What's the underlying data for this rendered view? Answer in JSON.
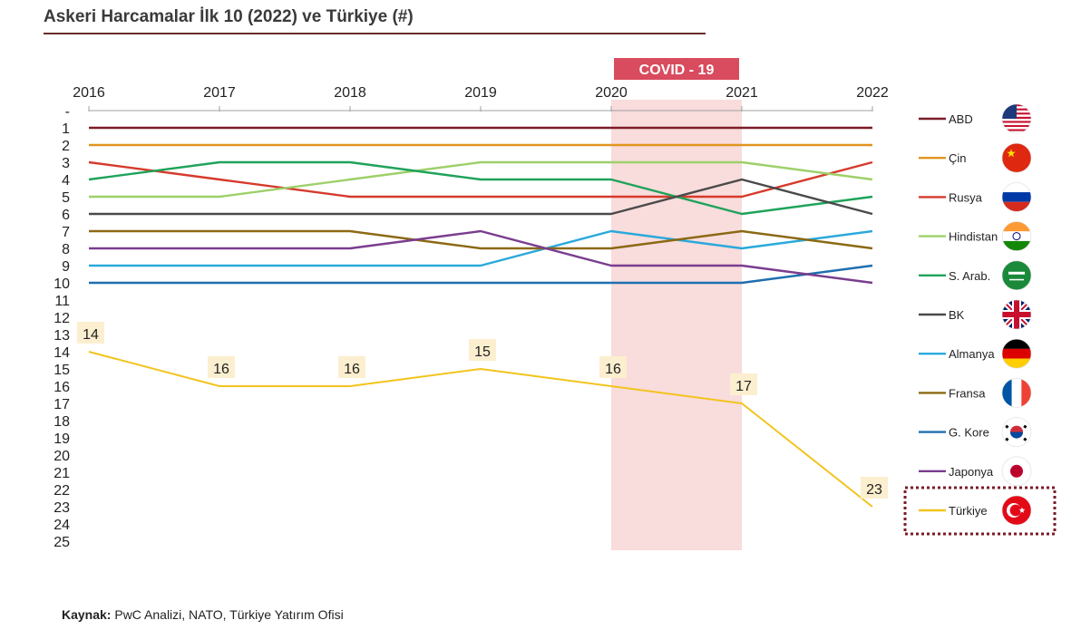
{
  "title": "Askeri Harcamalar İlk 10 (2022) ve Türkiye (#)",
  "source": {
    "label": "Kaynak:",
    "text": " PwC Analizi, NATO, Türkiye Yatırım Ofisi"
  },
  "chart_data": {
    "type": "line",
    "x": [
      "2016",
      "2017",
      "2018",
      "2019",
      "2020",
      "2021",
      "2022"
    ],
    "y_ticks": [
      "-",
      "1",
      "2",
      "3",
      "4",
      "5",
      "6",
      "7",
      "8",
      "9",
      "10",
      "11",
      "12",
      "13",
      "14",
      "15",
      "16",
      "17",
      "18",
      "19",
      "20",
      "21",
      "22",
      "23",
      "24",
      "25"
    ],
    "ylim": [
      0,
      25
    ],
    "y_inverted": true,
    "highlight": {
      "label": "COVID - 19",
      "from": "2020",
      "to": "2021",
      "color": "#f9dcdc",
      "label_bg": "#d94b5e"
    },
    "legend_position": "right",
    "series": [
      {
        "name": "ABD",
        "color": "#7b1c28",
        "values": [
          1,
          1,
          1,
          1,
          1,
          1,
          1
        ],
        "flag": "usa-flag-icon"
      },
      {
        "name": "Çin",
        "color": "#e0951e",
        "values": [
          2,
          2,
          2,
          2,
          2,
          2,
          2
        ],
        "flag": "china-flag-icon"
      },
      {
        "name": "Rusya",
        "color": "#d63a2b",
        "values": [
          3,
          4,
          5,
          5,
          5,
          5,
          3
        ],
        "flag": "russia-flag-icon"
      },
      {
        "name": "Hindistan",
        "color": "#9ed06a",
        "values": [
          5,
          5,
          4,
          3,
          3,
          3,
          4
        ],
        "flag": "india-flag-icon"
      },
      {
        "name": "S. Arab.",
        "color": "#1fa35a",
        "values": [
          4,
          3,
          3,
          4,
          4,
          6,
          5
        ],
        "flag": "saudi-flag-icon"
      },
      {
        "name": "BK",
        "color": "#4a4a4a",
        "values": [
          6,
          6,
          6,
          6,
          6,
          4,
          6
        ],
        "flag": "uk-flag-icon"
      },
      {
        "name": "Almanya",
        "color": "#2aa9db",
        "values": [
          9,
          9,
          9,
          9,
          7,
          8,
          7
        ],
        "flag": "germany-flag-icon"
      },
      {
        "name": "Fransa",
        "color": "#8b6914",
        "values": [
          7,
          7,
          7,
          8,
          8,
          7,
          8
        ],
        "flag": "france-flag-icon"
      },
      {
        "name": "G. Kore",
        "color": "#1f6fb0",
        "values": [
          10,
          10,
          10,
          10,
          10,
          10,
          9
        ],
        "flag": "korea-flag-icon"
      },
      {
        "name": "Japonya",
        "color": "#7a3d8f",
        "values": [
          8,
          8,
          8,
          7,
          9,
          9,
          10
        ],
        "flag": "japan-flag-icon"
      },
      {
        "name": "Türkiye",
        "color": "#f2c41e",
        "values": [
          14,
          16,
          16,
          15,
          16,
          17,
          23
        ],
        "flag": "turkey-flag-icon",
        "labels": [
          "14",
          "16",
          "16",
          "15",
          "16",
          "17",
          "23"
        ],
        "highlighted": true
      }
    ]
  }
}
